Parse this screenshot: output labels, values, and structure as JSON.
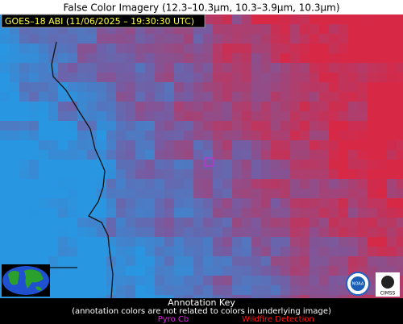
{
  "header": {
    "title": "False Color Imagery (12.3–10.3µm, 10.3–3.9µm, 10.3µm)"
  },
  "overlay": {
    "label": "GOES–18 ABI (11/06/2025 – 19:30:30 UTC)"
  },
  "logos": [
    "NOAA",
    "CIMSS"
  ],
  "annotation_key": {
    "title": "Annotation Key",
    "note": "(annotation colors are not related to colors in underlying image)",
    "items": [
      {
        "label": "Pyro Cb",
        "color": "#e020e0"
      },
      {
        "label": "Wildfire Detection",
        "color": "#ff1010"
      }
    ]
  }
}
